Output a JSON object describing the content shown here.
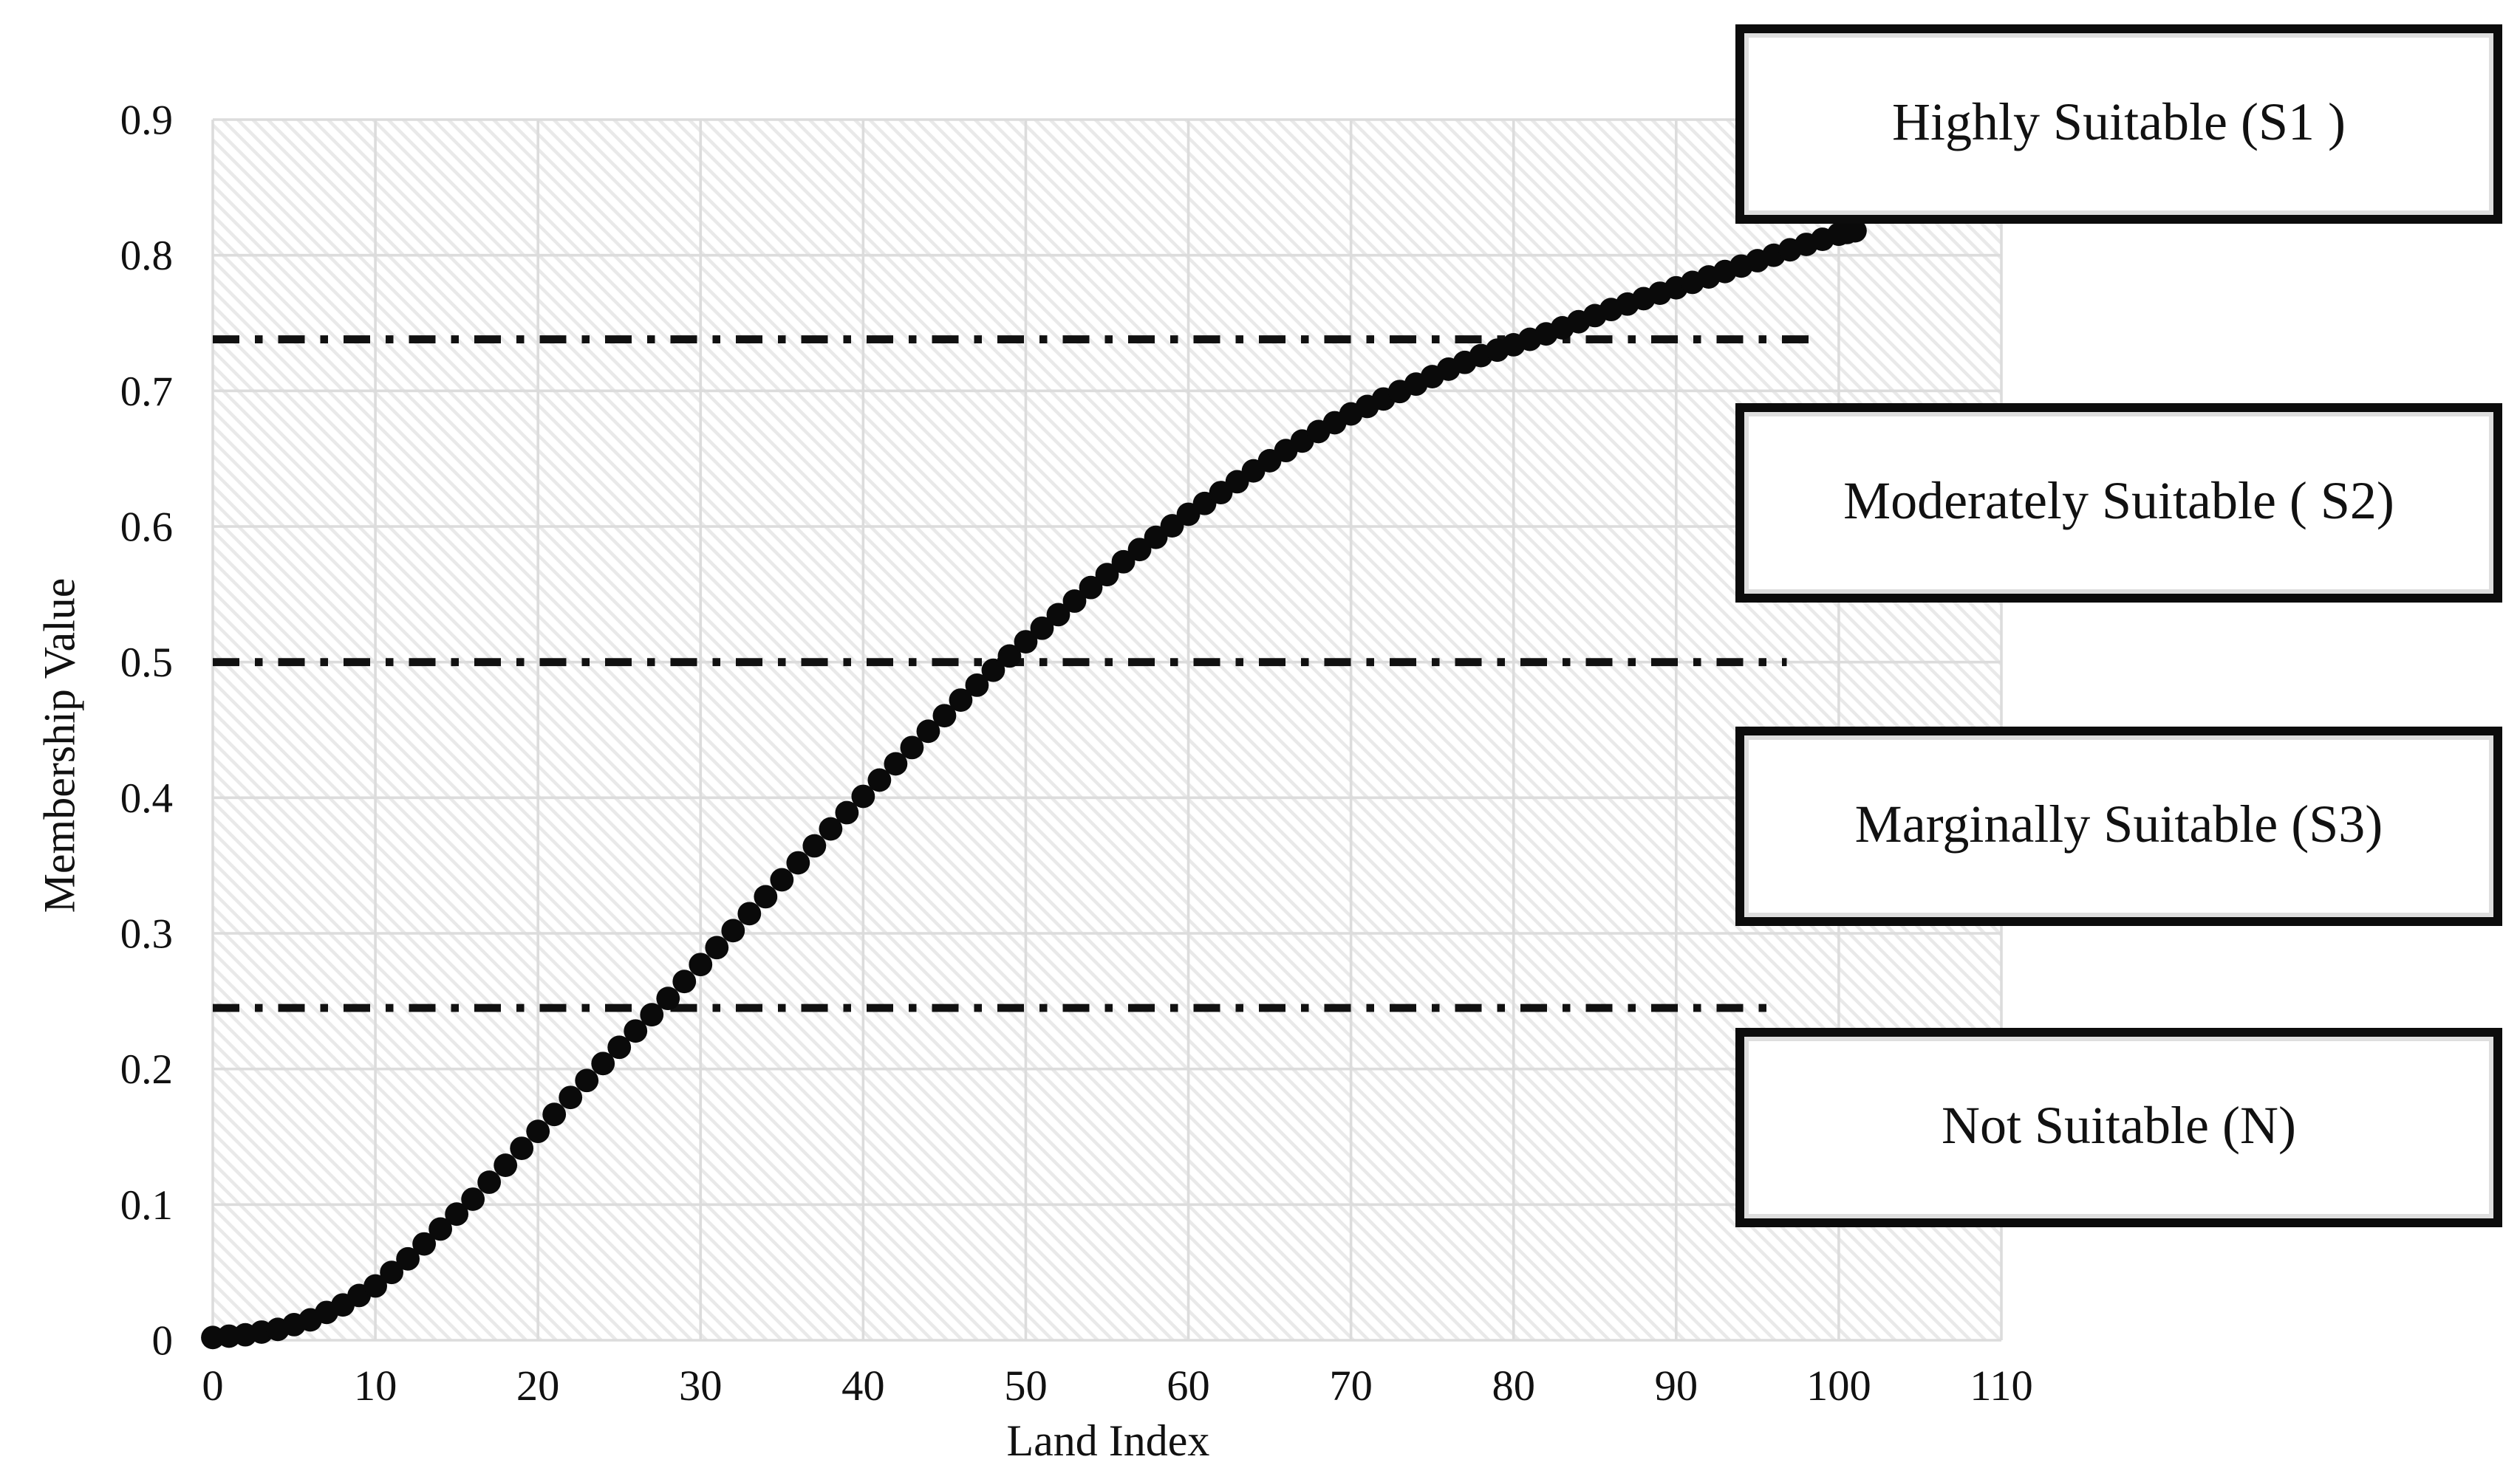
{
  "legend": {
    "boxes": [
      {
        "id": "s1",
        "label": "Highly Suitable (S1 )"
      },
      {
        "id": "s2",
        "label": "Moderately Suitable ( S2)"
      },
      {
        "id": "s3",
        "label": "Marginally Suitable (S3)"
      },
      {
        "id": "n",
        "label": "Not Suitable (N)"
      }
    ]
  },
  "chart_data": {
    "type": "scatter",
    "title": "",
    "xlabel": "Land Index",
    "ylabel": "Membership Value",
    "xlim": [
      0,
      110
    ],
    "ylim": [
      0,
      0.9
    ],
    "grid": true,
    "plot_background": "light-diagonal-hatch",
    "xticks": {
      "values": [
        0,
        10,
        20,
        30,
        40,
        50,
        60,
        70,
        80,
        90,
        100,
        110
      ],
      "labels": [
        "0",
        "10",
        "20",
        "30",
        "40",
        "50",
        "60",
        "70",
        "80",
        "90",
        "100",
        "110"
      ]
    },
    "yticks": {
      "values": [
        0,
        0.1,
        0.2,
        0.3,
        0.4,
        0.5,
        0.6,
        0.7,
        0.8,
        0.9
      ],
      "labels": [
        "0",
        "0.1",
        "0.2",
        "0.3",
        "0.4",
        "0.5",
        "0.6",
        "0.7",
        "0.8",
        "0.9"
      ]
    },
    "series": [
      {
        "name": "membership-curve",
        "marker": "filled-circle",
        "color": "#0a0a0a",
        "points": [
          [
            0,
            0.002
          ],
          [
            2,
            0.004
          ],
          [
            4,
            0.008
          ],
          [
            6,
            0.015
          ],
          [
            8,
            0.026
          ],
          [
            10,
            0.04
          ],
          [
            12,
            0.06
          ],
          [
            14,
            0.082
          ],
          [
            16,
            0.104
          ],
          [
            18,
            0.129
          ],
          [
            20,
            0.154
          ],
          [
            22,
            0.179
          ],
          [
            24,
            0.204
          ],
          [
            26,
            0.228
          ],
          [
            28,
            0.252
          ],
          [
            30,
            0.277
          ],
          [
            32,
            0.302
          ],
          [
            34,
            0.327
          ],
          [
            36,
            0.352
          ],
          [
            38,
            0.377
          ],
          [
            40,
            0.401
          ],
          [
            42,
            0.425
          ],
          [
            44,
            0.449
          ],
          [
            46,
            0.472
          ],
          [
            48,
            0.494
          ],
          [
            50,
            0.515
          ],
          [
            52,
            0.535
          ],
          [
            54,
            0.555
          ],
          [
            56,
            0.574
          ],
          [
            58,
            0.592
          ],
          [
            60,
            0.609
          ],
          [
            62,
            0.625
          ],
          [
            64,
            0.641
          ],
          [
            66,
            0.656
          ],
          [
            68,
            0.67
          ],
          [
            70,
            0.683
          ],
          [
            72,
            0.694
          ],
          [
            74,
            0.705
          ],
          [
            76,
            0.716
          ],
          [
            78,
            0.726
          ],
          [
            80,
            0.734
          ],
          [
            82,
            0.742
          ],
          [
            84,
            0.751
          ],
          [
            86,
            0.76
          ],
          [
            88,
            0.768
          ],
          [
            90,
            0.776
          ],
          [
            92,
            0.784
          ],
          [
            94,
            0.792
          ],
          [
            96,
            0.8
          ],
          [
            98,
            0.808
          ],
          [
            100,
            0.8155
          ],
          [
            101,
            0.818
          ]
        ]
      }
    ],
    "boundary_lines": [
      {
        "y": 0.738,
        "x_start": 0,
        "x_end": 99.0,
        "style": "dash-dot",
        "meaning": "S1 threshold"
      },
      {
        "y": 0.5,
        "x_start": 0,
        "x_end": 96.8,
        "style": "dash-dot",
        "meaning": "S2 threshold"
      },
      {
        "y": 0.245,
        "x_start": 0,
        "x_end": 96.0,
        "style": "dash-dot",
        "meaning": "S3 threshold"
      }
    ],
    "colors": {
      "curve": "#0a0a0a",
      "boundary_line": "#111111",
      "gridline": "#dcdcdc",
      "hatch": "#e9e9e9",
      "text": "#111111",
      "legend_border": "#0c0c0c",
      "background": "#ffffff"
    }
  }
}
